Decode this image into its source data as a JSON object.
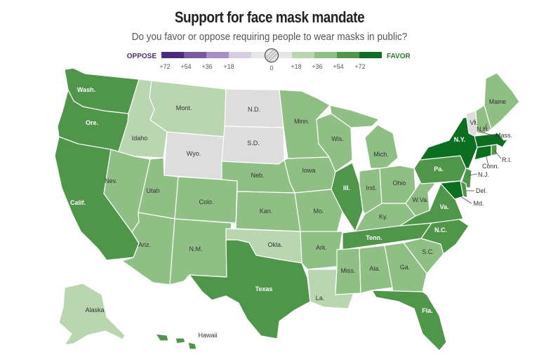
{
  "title": "Support for face mask mandate",
  "subtitle": "Do you favor or oppose requiring people to wear masks in public?",
  "legend": {
    "oppose_label": "OPPOSE",
    "favor_label": "FAVOR",
    "ticks": [
      "+72",
      "+54",
      "+36",
      "+18",
      "0",
      "+18",
      "+36",
      "+54",
      "+72"
    ],
    "colors": {
      "oppose4": "#4b2a7b",
      "oppose3": "#7a5a9e",
      "oppose2": "#a690c2",
      "oppose1": "#d6cde2",
      "neutral": "#dddddd",
      "favor1": "#b9d6b1",
      "favor2": "#8fbf85",
      "favor3": "#4f964b",
      "favor4": "#0c6e20"
    },
    "oppose_color": "#4b2a7b",
    "favor_color": "#2c7a32"
  },
  "states": {
    "wa": {
      "label": "Wash.",
      "bin": "favor3"
    },
    "or": {
      "label": "Ore.",
      "bin": "favor3"
    },
    "ca": {
      "label": "Calif.",
      "bin": "favor3"
    },
    "id": {
      "label": "Idaho",
      "bin": "favor1"
    },
    "nv": {
      "label": "Nev.",
      "bin": "favor2"
    },
    "mt": {
      "label": "Mont.",
      "bin": "favor1"
    },
    "wy": {
      "label": "Wyo.",
      "bin": "neutral"
    },
    "ut": {
      "label": "Utah",
      "bin": "favor2"
    },
    "az": {
      "label": "Ariz.",
      "bin": "favor2"
    },
    "co": {
      "label": "Colo.",
      "bin": "favor2"
    },
    "nm": {
      "label": "N.M.",
      "bin": "favor2"
    },
    "nd": {
      "label": "N.D.",
      "bin": "neutral"
    },
    "sd": {
      "label": "S.D.",
      "bin": "neutral"
    },
    "ne": {
      "label": "Neb.",
      "bin": "favor2"
    },
    "ks": {
      "label": "Kan.",
      "bin": "favor2"
    },
    "ok": {
      "label": "Okla.",
      "bin": "favor1"
    },
    "tx": {
      "label": "Texas",
      "bin": "favor3"
    },
    "mn": {
      "label": "Minn.",
      "bin": "favor2"
    },
    "ia": {
      "label": "Iowa",
      "bin": "favor2"
    },
    "mo": {
      "label": "Mo.",
      "bin": "favor2"
    },
    "ar": {
      "label": "Ark.",
      "bin": "favor2"
    },
    "la": {
      "label": "La.",
      "bin": "favor1"
    },
    "wi": {
      "label": "Wis.",
      "bin": "favor2"
    },
    "il": {
      "label": "Ill.",
      "bin": "favor3"
    },
    "mi": {
      "label": "Mich.",
      "bin": "favor2"
    },
    "in": {
      "label": "Ind.",
      "bin": "favor2"
    },
    "oh": {
      "label": "Ohio",
      "bin": "favor2"
    },
    "ky": {
      "label": "Ky.",
      "bin": "favor2"
    },
    "tn": {
      "label": "Tenn.",
      "bin": "favor3"
    },
    "ms": {
      "label": "Miss.",
      "bin": "favor2"
    },
    "al": {
      "label": "Ala.",
      "bin": "favor2"
    },
    "ga": {
      "label": "Ga.",
      "bin": "favor2"
    },
    "fl": {
      "label": "Fla.",
      "bin": "favor3"
    },
    "sc": {
      "label": "S.C.",
      "bin": "favor2"
    },
    "nc": {
      "label": "N.C.",
      "bin": "favor3"
    },
    "va": {
      "label": "Va.",
      "bin": "favor3"
    },
    "wv": {
      "label": "W.Va.",
      "bin": "favor2"
    },
    "pa": {
      "label": "Pa.",
      "bin": "favor3"
    },
    "ny": {
      "label": "N.Y.",
      "bin": "favor4"
    },
    "nj": {
      "label": "N.J.",
      "bin": "favor3"
    },
    "de": {
      "label": "Del.",
      "bin": "favor3"
    },
    "md": {
      "label": "Md.",
      "bin": "favor4"
    },
    "ct": {
      "label": "Conn.",
      "bin": "favor4"
    },
    "ri": {
      "label": "R.I.",
      "bin": "favor3"
    },
    "ma": {
      "label": "Mass.",
      "bin": "favor4"
    },
    "vt": {
      "label": "Vt.",
      "bin": "neutral"
    },
    "nh": {
      "label": "N.H.",
      "bin": "favor2"
    },
    "me": {
      "label": "Maine",
      "bin": "favor2"
    },
    "ak": {
      "label": "Alaska",
      "bin": "favor1"
    },
    "hi": {
      "label": "Hawaii",
      "bin": "favor3"
    }
  }
}
